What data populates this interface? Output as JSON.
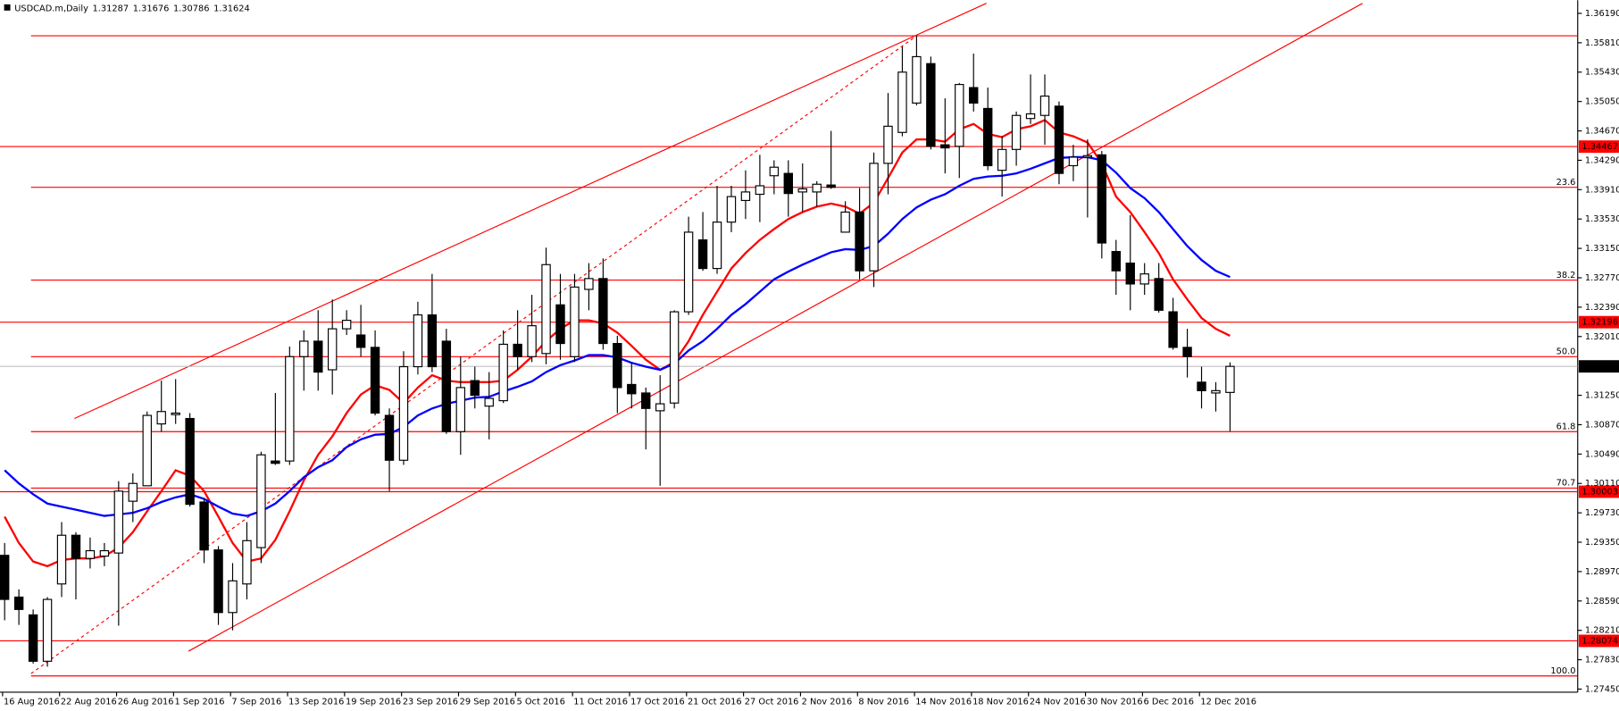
{
  "chart_data": {
    "type": "candlestick",
    "title": "USDCAD.m,Daily",
    "categories": [
      "16 Aug 2016",
      null,
      null,
      null,
      "22 Aug 2016",
      null,
      null,
      null,
      "26 Aug 2016",
      null,
      null,
      null,
      "1 Sep 2016",
      null,
      null,
      null,
      "7 Sep 2016",
      null,
      null,
      null,
      "13 Sep 2016",
      null,
      null,
      null,
      "19 Sep 2016",
      null,
      null,
      null,
      "23 Sep 2016",
      null,
      null,
      null,
      "29 Sep 2016",
      null,
      null,
      null,
      "5 Oct 2016",
      null,
      null,
      null,
      "11 Oct 2016",
      null,
      null,
      null,
      "17 Oct 2016",
      null,
      null,
      null,
      "21 Oct 2016",
      null,
      null,
      null,
      "27 Oct 2016",
      null,
      null,
      null,
      "2 Nov 2016",
      null,
      null,
      null,
      "8 Nov 2016",
      null,
      null,
      null,
      "14 Nov 2016",
      null,
      null,
      null,
      "18 Nov 2016",
      null,
      null,
      null,
      "24 Nov 2016",
      null,
      null,
      null,
      "30 Nov 2016",
      null,
      null,
      null,
      "6 Dec 2016",
      null,
      null,
      null,
      "12 Dec 2016",
      null,
      null
    ],
    "open": [
      1.2918,
      1.2864,
      1.2841,
      1.2781,
      1.2881,
      1.2944,
      1.2914,
      1.2917,
      1.2921,
      1.2988,
      1.3008,
      1.3088,
      1.31,
      1.3095,
      1.2987,
      1.2925,
      1.2844,
      1.2881,
      1.2928,
      1.304,
      1.304,
      1.3175,
      1.3195,
      1.3158,
      1.3211,
      1.3203,
      1.3187,
      1.3099,
      1.3041,
      1.3162,
      1.3229,
      1.3195,
      1.3078,
      1.3144,
      1.3111,
      1.3118,
      1.3191,
      1.3175,
      1.3179,
      1.3242,
      1.3175,
      1.3262,
      1.3276,
      1.3192,
      1.3139,
      1.3128,
      1.3105,
      1.3115,
      1.3233,
      1.3326,
      1.3289,
      1.3349,
      1.3377,
      1.3385,
      1.3409,
      1.3412,
      1.3388,
      1.3388,
      1.3397,
      1.3336,
      1.3362,
      1.3286,
      1.3425,
      1.3465,
      1.3503,
      1.3554,
      1.3449,
      1.3447,
      1.3523,
      1.3496,
      1.3416,
      1.3443,
      1.3483,
      1.3487,
      1.3499,
      1.3422,
      1.3433,
      1.3436,
      1.3311,
      1.3296,
      1.3269,
      1.3276,
      1.3233,
      1.3187,
      1.3142,
      1.3128,
      1.31287
    ],
    "high": [
      1.2934,
      1.2874,
      1.2848,
      1.2864,
      1.2961,
      1.2948,
      1.2941,
      1.2934,
      1.3014,
      1.3024,
      1.3104,
      1.3144,
      1.3146,
      1.3102,
      1.2992,
      1.293,
      1.2908,
      1.2961,
      1.3052,
      1.3128,
      1.3188,
      1.3209,
      1.3235,
      1.3249,
      1.3235,
      1.3242,
      1.3209,
      1.3108,
      1.3182,
      1.3246,
      1.3282,
      1.3211,
      1.3175,
      1.3162,
      1.3155,
      1.3209,
      1.3235,
      1.3255,
      1.3316,
      1.3282,
      1.3282,
      1.3296,
      1.3302,
      1.3202,
      1.3168,
      1.3135,
      1.3151,
      1.3235,
      1.3356,
      1.3362,
      1.3396,
      1.3396,
      1.3416,
      1.3436,
      1.3429,
      1.3429,
      1.3425,
      1.3402,
      1.3467,
      1.3376,
      1.3393,
      1.3439,
      1.3516,
      1.3576,
      1.359,
      1.3563,
      1.3509,
      1.3529,
      1.3567,
      1.3523,
      1.346,
      1.3492,
      1.354,
      1.354,
      1.3505,
      1.3449,
      1.3456,
      1.3441,
      1.3326,
      1.3358,
      1.3296,
      1.3296,
      1.3251,
      1.3211,
      1.3162,
      1.3142,
      1.31676
    ],
    "low": [
      1.2834,
      1.2828,
      1.2778,
      1.2774,
      1.2864,
      1.2861,
      1.2901,
      1.2904,
      1.2827,
      1.2961,
      1.3008,
      1.3078,
      1.3088,
      1.2981,
      1.2908,
      1.2828,
      1.2821,
      1.2861,
      1.2908,
      1.3035,
      1.3035,
      1.3131,
      1.3131,
      1.3126,
      1.3203,
      1.3175,
      1.3099,
      1.3001,
      1.3035,
      1.3152,
      1.3155,
      1.3075,
      1.3048,
      1.3108,
      1.3068,
      1.3115,
      1.3158,
      1.3168,
      1.3165,
      1.3171,
      1.3168,
      1.3235,
      1.3184,
      1.3102,
      1.3108,
      1.3055,
      1.3008,
      1.3108,
      1.3229,
      1.3286,
      1.3282,
      1.3336,
      1.3353,
      1.3349,
      1.3385,
      1.3356,
      1.3362,
      1.3369,
      1.3392,
      1.3336,
      1.3275,
      1.3265,
      1.3385,
      1.346,
      1.35,
      1.3443,
      1.3412,
      1.3406,
      1.3492,
      1.3416,
      1.3382,
      1.3422,
      1.3476,
      1.3449,
      1.3398,
      1.3402,
      1.3355,
      1.3302,
      1.3255,
      1.3235,
      1.3255,
      1.3232,
      1.3184,
      1.3148,
      1.3108,
      1.3104,
      1.30786
    ],
    "close": [
      1.2861,
      1.2848,
      1.2781,
      1.2861,
      1.2944,
      1.2914,
      1.2924,
      1.2924,
      1.3001,
      1.3011,
      1.3099,
      1.3104,
      1.3102,
      1.2984,
      1.2925,
      1.2844,
      1.2885,
      1.2937,
      1.3048,
      1.3037,
      1.3175,
      1.3195,
      1.3155,
      1.3211,
      1.3222,
      1.3187,
      1.3102,
      1.3041,
      1.3162,
      1.3229,
      1.3162,
      1.3078,
      1.3135,
      1.3125,
      1.3121,
      1.3191,
      1.3175,
      1.3215,
      1.3294,
      1.3192,
      1.3265,
      1.3276,
      1.3192,
      1.3135,
      1.3127,
      1.3108,
      1.3114,
      1.3233,
      1.3336,
      1.3289,
      1.3349,
      1.3382,
      1.3388,
      1.3396,
      1.342,
      1.3386,
      1.3392,
      1.3398,
      1.3394,
      1.3362,
      1.3286,
      1.3425,
      1.3473,
      1.3543,
      1.3563,
      1.3447,
      1.3445,
      1.3527,
      1.3503,
      1.3422,
      1.3443,
      1.3487,
      1.3489,
      1.3512,
      1.3412,
      1.3433,
      1.3435,
      1.3322,
      1.3286,
      1.3269,
      1.3282,
      1.3235,
      1.3187,
      1.3175,
      1.3131,
      1.3131,
      1.31624
    ],
    "up_color": "#ffffff",
    "down_color": "#000000",
    "lines": [
      {
        "color": "#ff0000",
        "values": [
          1.2968,
          1.2934,
          1.291,
          1.2904,
          1.2912,
          1.2914,
          1.2914,
          1.2917,
          1.2928,
          1.2948,
          1.2975,
          1.3001,
          1.3028,
          1.3021,
          1.3001,
          1.2968,
          1.2934,
          1.291,
          1.2914,
          1.2938,
          1.2975,
          1.3015,
          1.3048,
          1.3072,
          1.3102,
          1.3126,
          1.3138,
          1.3132,
          1.3115,
          1.3135,
          1.3151,
          1.3144,
          1.3142,
          1.3142,
          1.3142,
          1.3144,
          1.3158,
          1.3175,
          1.3195,
          1.3211,
          1.3222,
          1.3222,
          1.3218,
          1.3206,
          1.3189,
          1.3171,
          1.3158,
          1.3168,
          1.3195,
          1.3229,
          1.3259,
          1.3289,
          1.3309,
          1.3326,
          1.334,
          1.3353,
          1.3362,
          1.3369,
          1.3373,
          1.3369,
          1.336,
          1.3374,
          1.3406,
          1.3439,
          1.3456,
          1.3456,
          1.3453,
          1.3469,
          1.3476,
          1.3463,
          1.3459,
          1.3469,
          1.3473,
          1.3481,
          1.3465,
          1.346,
          1.3452,
          1.3425,
          1.3382,
          1.3362,
          1.3336,
          1.3309,
          1.3275,
          1.3249,
          1.3225,
          1.3211,
          1.3202
        ]
      },
      {
        "color": "#0000ff",
        "values": [
          1.3028,
          1.3011,
          1.2997,
          1.2985,
          1.2981,
          1.2977,
          1.2973,
          1.2969,
          1.2971,
          1.2973,
          1.2979,
          1.2987,
          1.2993,
          1.2997,
          1.2991,
          1.2981,
          1.2972,
          1.2969,
          1.2975,
          1.2985,
          1.3001,
          1.3019,
          1.3032,
          1.3041,
          1.3058,
          1.3068,
          1.3074,
          1.3075,
          1.3084,
          1.3099,
          1.3108,
          1.3114,
          1.3118,
          1.3122,
          1.3123,
          1.313,
          1.3136,
          1.3143,
          1.3155,
          1.3164,
          1.317,
          1.3177,
          1.3177,
          1.3174,
          1.3167,
          1.3162,
          1.3158,
          1.3166,
          1.3183,
          1.3195,
          1.3211,
          1.3229,
          1.3243,
          1.3259,
          1.3275,
          1.3285,
          1.3294,
          1.3302,
          1.331,
          1.3314,
          1.3313,
          1.3318,
          1.3334,
          1.3353,
          1.3368,
          1.3378,
          1.3385,
          1.3396,
          1.3405,
          1.3408,
          1.3409,
          1.3412,
          1.3418,
          1.3425,
          1.3432,
          1.3433,
          1.3433,
          1.3429,
          1.3413,
          1.3393,
          1.338,
          1.3362,
          1.334,
          1.3318,
          1.33,
          1.3286,
          1.3278
        ]
      }
    ],
    "trendlines": [
      {
        "x": [
          4.9,
          68.9
        ],
        "y": [
          1.3095,
          1.3632
        ],
        "dashed": false
      },
      {
        "x": [
          1.85,
          64.0
        ],
        "y": [
          1.2765,
          1.359
        ],
        "dashed": true
      },
      {
        "x": [
          12.9,
          95.3
        ],
        "y": [
          1.2794,
          1.3632
        ],
        "dashed": false
      }
    ],
    "hlines": [
      1.359
    ],
    "price_tags": [
      1.34467,
      1.32196,
      1.30003,
      1.28074
    ],
    "fib": [
      {
        "label": "23.6",
        "value": 1.3394
      },
      {
        "label": "38.2",
        "value": 1.3274
      },
      {
        "label": "50.0",
        "value": 1.3175
      },
      {
        "label": "61.8",
        "value": 1.3078
      },
      {
        "label": "70.7",
        "value": 1.3005
      },
      {
        "label": "100.0",
        "value": 1.2762
      }
    ],
    "level_color": "#ff0000",
    "ylim": [
      1.2741,
      1.3636
    ],
    "yticks": [
      {
        "value": 1.2745,
        "label": "1.27450"
      },
      {
        "value": 1.2783,
        "label": "1.27830"
      },
      {
        "value": 1.2821,
        "label": "1.28210"
      },
      {
        "value": 1.2859,
        "label": "1.28590"
      },
      {
        "value": 1.2897,
        "label": "1.28970"
      },
      {
        "value": 1.2935,
        "label": "1.29350"
      },
      {
        "value": 1.2973,
        "label": "1.29730"
      },
      {
        "value": 1.3011,
        "label": "1.30110"
      },
      {
        "value": 1.3049,
        "label": "1.30490"
      },
      {
        "value": 1.3087,
        "label": "1.30870"
      },
      {
        "value": 1.3125,
        "label": "1.31250"
      },
      {
        "value": 1.3201,
        "label": "1.32010"
      },
      {
        "value": 1.3239,
        "label": "1.32390"
      },
      {
        "value": 1.3277,
        "label": "1.32770"
      },
      {
        "value": 1.3315,
        "label": "1.33150"
      },
      {
        "value": 1.3353,
        "label": "1.33530"
      },
      {
        "value": 1.3391,
        "label": "1.33910"
      },
      {
        "value": 1.3429,
        "label": "1.34290"
      },
      {
        "value": 1.3467,
        "label": "1.34670"
      },
      {
        "value": 1.3505,
        "label": "1.35050"
      },
      {
        "value": 1.3543,
        "label": "1.35430"
      },
      {
        "value": 1.3581,
        "label": "1.35810"
      },
      {
        "value": 1.3619,
        "label": "1.36190"
      }
    ]
  }
}
